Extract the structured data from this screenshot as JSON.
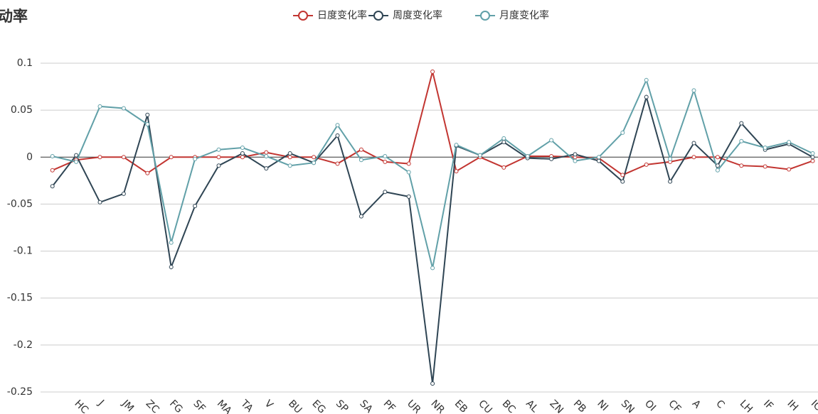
{
  "chart_data": {
    "type": "line",
    "title": "动率",
    "categories": [
      null,
      "HC",
      "J",
      "JM",
      "ZC",
      "FG",
      "SF",
      "MA",
      "TA",
      "V",
      "BU",
      "EG",
      "SP",
      "SA",
      "PF",
      "UR",
      "NR",
      "EB",
      "CU",
      "BC",
      "AL",
      "ZN",
      "PB",
      "NI",
      "SN",
      "OI",
      "CF",
      "A",
      "C",
      "LH",
      "IF",
      "IH",
      "IC"
    ],
    "series": [
      {
        "name": "日度变化率",
        "color": "#c23531",
        "values": [
          -0.014,
          -0.003,
          0,
          0,
          -0.017,
          0,
          0,
          0,
          0,
          0.005,
          0,
          0,
          -0.007,
          0.008,
          -0.005,
          -0.007,
          0.091,
          -0.015,
          0,
          -0.011,
          0.001,
          0.001,
          0,
          -0.001,
          -0.019,
          -0.008,
          -0.005,
          0,
          0,
          -0.009,
          -0.01,
          -0.013,
          -0.004
        ]
      },
      {
        "name": "周度变化率",
        "color": "#2f4554",
        "values": [
          -0.031,
          0.002,
          -0.048,
          -0.039,
          0.045,
          -0.117,
          -0.052,
          -0.009,
          0.004,
          -0.012,
          0.004,
          -0.006,
          0.023,
          -0.063,
          -0.037,
          -0.042,
          -0.241,
          0.012,
          0.002,
          0.016,
          -0.001,
          -0.002,
          0.003,
          -0.004,
          -0.026,
          0.064,
          -0.026,
          0.015,
          -0.009,
          0.036,
          0.008,
          0.014,
          0
        ]
      },
      {
        "name": "月度变化率",
        "color": "#61a0a8",
        "values": [
          0.001,
          -0.005,
          0.054,
          0.052,
          0.035,
          -0.091,
          -0.002,
          0.008,
          0.01,
          0.001,
          -0.009,
          -0.006,
          0.034,
          -0.003,
          0.001,
          -0.016,
          -0.118,
          0.013,
          0.002,
          0.02,
          0.001,
          0.018,
          -0.004,
          0,
          0.026,
          0.082,
          -0.002,
          0.071,
          -0.014,
          0.017,
          0.01,
          0.016,
          0.004
        ]
      }
    ],
    "ylim": [
      -0.25,
      0.1
    ],
    "yticks": [
      -0.25,
      -0.2,
      -0.15,
      -0.1,
      -0.05,
      0,
      0.05,
      0.1
    ],
    "grid": true
  }
}
